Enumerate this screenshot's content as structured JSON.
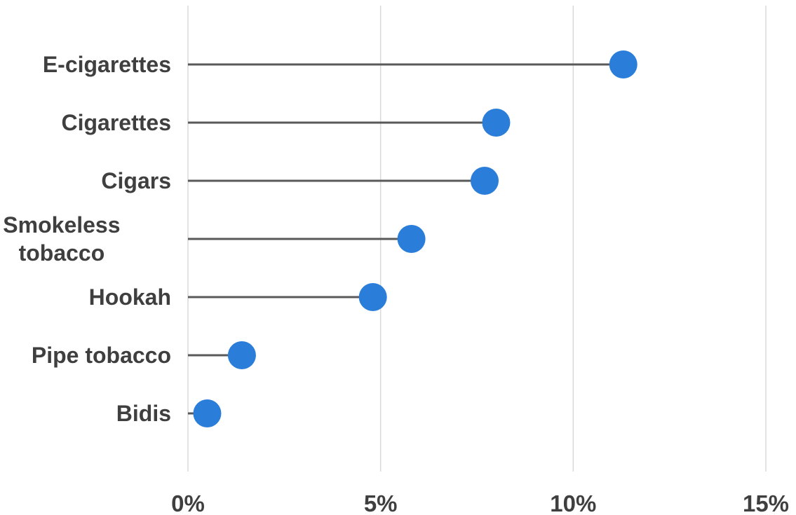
{
  "chart_data": {
    "type": "lollipop",
    "title": "",
    "xlabel": "",
    "ylabel": "",
    "categories": [
      [
        "E-cigarettes"
      ],
      [
        "Cigarettes"
      ],
      [
        "Cigars"
      ],
      [
        "Smokeless",
        "tobacco"
      ],
      [
        "Hookah"
      ],
      [
        "Pipe tobacco"
      ],
      [
        "Bidis"
      ]
    ],
    "values": [
      11.3,
      8.0,
      7.7,
      5.8,
      4.8,
      1.4,
      0.5
    ],
    "xlim": [
      0,
      15
    ],
    "xticks": [
      0,
      5,
      10,
      15
    ],
    "xtick_labels": [
      "0%",
      "5%",
      "10%",
      "15%"
    ],
    "grid": "vertical",
    "legend": "none",
    "colors": {
      "marker": "#2a7dd9",
      "stem": "#595959",
      "grid": "#d9d9d9",
      "text": "#3f3f3f"
    }
  }
}
